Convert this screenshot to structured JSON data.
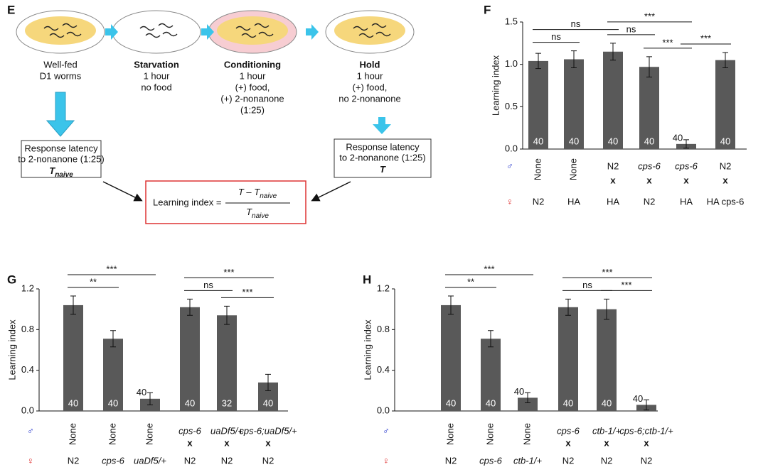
{
  "panels": [
    "E",
    "F",
    "G",
    "H"
  ],
  "diagram": {
    "steps": [
      {
        "title": null,
        "lines": [
          "Well-fed",
          "D1 worms"
        ]
      },
      {
        "title": "Starvation",
        "lines": [
          "1 hour",
          "no food"
        ]
      },
      {
        "title": "Conditioning",
        "lines": [
          "1 hour",
          "(+) food,",
          "(+) 2-nonanone",
          "(1:25)"
        ]
      },
      {
        "title": "Hold",
        "lines": [
          "1 hour",
          "(+) food,",
          "no 2-nonanone"
        ]
      }
    ],
    "boxes": [
      {
        "lines": [
          "Response latency",
          "to 2-nonanone (1:25)"
        ],
        "main": "T",
        "sub": "naive"
      },
      {
        "lines": [
          "Response latency",
          "to 2-nonanone (1:25)"
        ],
        "main": "T",
        "sub": null
      }
    ],
    "formula": {
      "label": "Learning index =",
      "numerator": {
        "main": "T – T",
        "sub": "naive"
      },
      "denominator": {
        "main": "T",
        "sub": "naive"
      }
    }
  },
  "chart_data": [
    {
      "type": "bar",
      "ylabel": "Learning index",
      "color": "#595959",
      "ylim": [
        0,
        1.5
      ],
      "yticks": [
        {
          "value": 0,
          "label": "0.0"
        },
        {
          "value": 0.5,
          "label": "0.5"
        },
        {
          "value": 1,
          "label": "1.0"
        },
        {
          "value": 1.5,
          "label": "1.5"
        }
      ],
      "male_symbol": "♂",
      "female_symbol": "♀",
      "categories": [
        "None",
        "None",
        "N2",
        "cps-6",
        "cps-6",
        "N2"
      ],
      "male_italic": [
        false,
        false,
        false,
        true,
        true,
        false
      ],
      "male_rotated": [
        true,
        true,
        false,
        false,
        false,
        false
      ],
      "crosses": [
        null,
        null,
        "x",
        "x",
        "x",
        "x"
      ],
      "female": [
        "N2",
        "HA",
        "HA",
        "N2",
        "HA",
        "HA cps-6"
      ],
      "female_italic": [
        false,
        false,
        false,
        false,
        false,
        false
      ],
      "values": [
        1.04,
        1.06,
        1.15,
        0.97,
        0.06,
        1.05
      ],
      "errors": [
        0.09,
        0.1,
        0.1,
        0.12,
        0.05,
        0.09
      ],
      "n_labels": [
        "40",
        "40",
        "40",
        "40",
        "40",
        "40"
      ],
      "significance": [
        {
          "label": "ns",
          "from": 0,
          "to": 1
        },
        {
          "label": "ns",
          "from": 0,
          "to": 2
        },
        {
          "label": "ns",
          "from": 2,
          "to": 3
        },
        {
          "label": "***",
          "from": 3,
          "to": 4
        },
        {
          "label": "***",
          "from": 2,
          "to": 4
        },
        {
          "label": "***",
          "from": 4,
          "to": 5
        }
      ]
    },
    {
      "type": "bar",
      "ylabel": "Learning index",
      "color": "#595959",
      "ylim": [
        0,
        1.2
      ],
      "yticks": [
        {
          "value": 0,
          "label": "0.0"
        },
        {
          "value": 0.4,
          "label": "0.4"
        },
        {
          "value": 0.8,
          "label": "0.8"
        },
        {
          "value": 1.2,
          "label": "1.2"
        }
      ],
      "male_symbol": "♂",
      "female_symbol": "♀",
      "categories": [
        "None",
        "None",
        "None",
        "cps-6",
        "uaDf5/+",
        "cps-6;uaDf5/+"
      ],
      "male_italic": [
        false,
        false,
        false,
        true,
        true,
        true
      ],
      "male_rotated": [
        true,
        true,
        true,
        false,
        false,
        false
      ],
      "crosses": [
        null,
        null,
        null,
        "x",
        "x",
        "x"
      ],
      "female": [
        "N2",
        "cps-6",
        "uaDf5/+",
        "N2",
        "N2",
        "N2"
      ],
      "female_italic": [
        false,
        true,
        true,
        false,
        false,
        false
      ],
      "values": [
        1.04,
        0.71,
        0.12,
        1.02,
        0.94,
        0.28
      ],
      "errors": [
        0.09,
        0.08,
        0.06,
        0.08,
        0.09,
        0.08
      ],
      "n_labels": [
        "40",
        "40",
        "40",
        "40",
        "32",
        "40"
      ],
      "significance": [
        {
          "label": "**",
          "from": 0,
          "to": 1
        },
        {
          "label": "***",
          "from": 0,
          "to": 2
        },
        {
          "label": "ns",
          "from": 3,
          "to": 4
        },
        {
          "label": "***",
          "from": 4,
          "to": 5
        },
        {
          "label": "***",
          "from": 3,
          "to": 5
        }
      ]
    },
    {
      "type": "bar",
      "ylabel": "Learning index",
      "color": "#595959",
      "ylim": [
        0,
        1.2
      ],
      "yticks": [
        {
          "value": 0,
          "label": "0.0"
        },
        {
          "value": 0.4,
          "label": "0.4"
        },
        {
          "value": 0.8,
          "label": "0.8"
        },
        {
          "value": 1.2,
          "label": "1.2"
        }
      ],
      "male_symbol": "♂",
      "female_symbol": "♀",
      "categories": [
        "None",
        "None",
        "None",
        "cps-6",
        "ctb-1/+",
        "cps-6;ctb-1/+"
      ],
      "male_italic": [
        false,
        false,
        false,
        true,
        true,
        true
      ],
      "male_rotated": [
        true,
        true,
        true,
        false,
        false,
        false
      ],
      "crosses": [
        null,
        null,
        null,
        "x",
        "x",
        "x"
      ],
      "female": [
        "N2",
        "cps-6",
        "ctb-1/+",
        "N2",
        "N2",
        "N2"
      ],
      "female_italic": [
        false,
        true,
        true,
        false,
        false,
        false
      ],
      "values": [
        1.04,
        0.71,
        0.13,
        1.02,
        1.0,
        0.06
      ],
      "errors": [
        0.09,
        0.08,
        0.05,
        0.08,
        0.1,
        0.05
      ],
      "n_labels": [
        "40",
        "40",
        "40",
        "40",
        "40",
        "40"
      ],
      "significance": [
        {
          "label": "**",
          "from": 0,
          "to": 1
        },
        {
          "label": "***",
          "from": 0,
          "to": 2
        },
        {
          "label": "ns",
          "from": 3,
          "to": 4
        },
        {
          "label": "***",
          "from": 4,
          "to": 5
        },
        {
          "label": "***",
          "from": 3,
          "to": 5
        }
      ]
    }
  ]
}
